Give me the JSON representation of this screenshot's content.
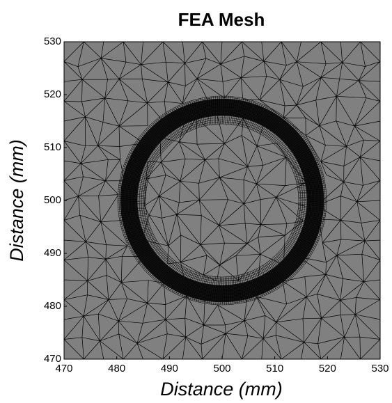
{
  "chart_data": {
    "type": "mesh",
    "title": "FEA Mesh",
    "xlabel": "Distance (mm)",
    "ylabel": "Distance (mm)",
    "xlim": [
      470,
      530
    ],
    "ylim": [
      470,
      530
    ],
    "xticks": [
      470,
      480,
      490,
      500,
      510,
      520,
      530
    ],
    "yticks": [
      470,
      480,
      490,
      500,
      510,
      520,
      530
    ],
    "color": "#808080"
  }
}
